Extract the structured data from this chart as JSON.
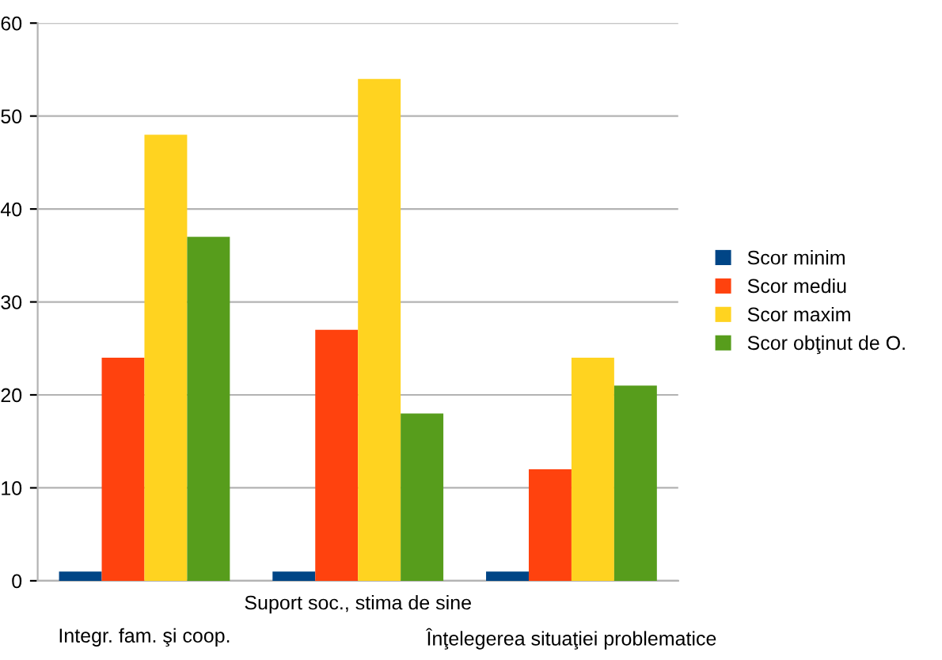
{
  "chart_data": {
    "type": "bar",
    "categories": [
      "Integr. fam. şi coop.",
      "Suport soc., stima de sine",
      "Înţelegerea situaţiei problematice"
    ],
    "series": [
      {
        "name": "Scor minim",
        "color": "#004586",
        "values": [
          1,
          1,
          1
        ]
      },
      {
        "name": "Scor mediu",
        "color": "#ff420e",
        "values": [
          24,
          27,
          12
        ]
      },
      {
        "name": "Scor maxim",
        "color": "#ffd320",
        "values": [
          48,
          54,
          24
        ]
      },
      {
        "name": "Scor obţinut de O.",
        "color": "#579d1c",
        "values": [
          37,
          18,
          21
        ]
      }
    ],
    "ylim": [
      0,
      60
    ],
    "yticks": [
      0,
      10,
      20,
      30,
      40,
      50,
      60
    ],
    "grid": "y",
    "legend": "right"
  }
}
